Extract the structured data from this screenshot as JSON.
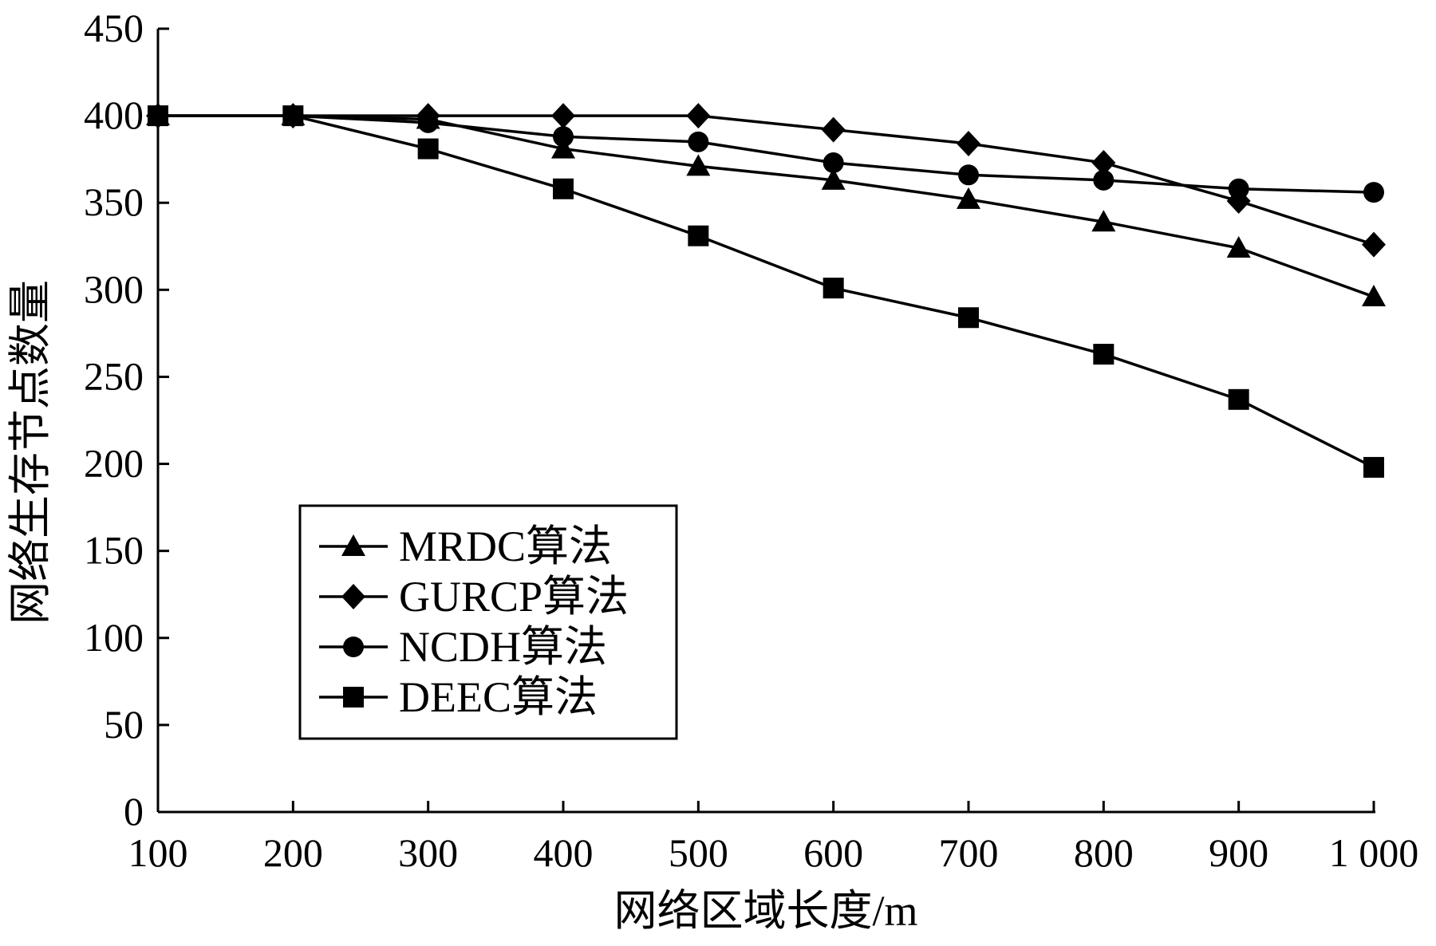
{
  "chart_data": {
    "type": "line",
    "title": "",
    "xlabel": "网络区域长度/m",
    "ylabel": "网络生存节点数量",
    "x": [
      100,
      200,
      300,
      400,
      500,
      600,
      700,
      800,
      900,
      1000
    ],
    "x_tick_labels": [
      "100",
      "200",
      "300",
      "400",
      "500",
      "600",
      "700",
      "800",
      "900",
      "1 000"
    ],
    "xlim": [
      100,
      1000
    ],
    "ylim": [
      0,
      450
    ],
    "y_ticks": [
      0,
      50,
      100,
      150,
      200,
      250,
      300,
      350,
      400,
      450
    ],
    "y_tick_labels": [
      "0",
      "50",
      "100",
      "150",
      "200",
      "250",
      "300",
      "350",
      "400",
      "450"
    ],
    "grid": false,
    "legend_position": "lower-left",
    "series": [
      {
        "name": "MRDC算法",
        "marker": "triangle",
        "values": [
          400,
          400,
          398,
          381,
          371,
          363,
          352,
          339,
          324,
          296
        ]
      },
      {
        "name": "GURCP算法",
        "marker": "diamond",
        "values": [
          400,
          400,
          400,
          400,
          400,
          392,
          384,
          373,
          351,
          326
        ]
      },
      {
        "name": "NCDH算法",
        "marker": "circle",
        "values": [
          400,
          400,
          396,
          388,
          385,
          373,
          366,
          363,
          358,
          356
        ]
      },
      {
        "name": "DEEC算法",
        "marker": "square",
        "values": [
          400,
          400,
          381,
          358,
          331,
          301,
          284,
          263,
          237,
          198
        ]
      }
    ]
  }
}
